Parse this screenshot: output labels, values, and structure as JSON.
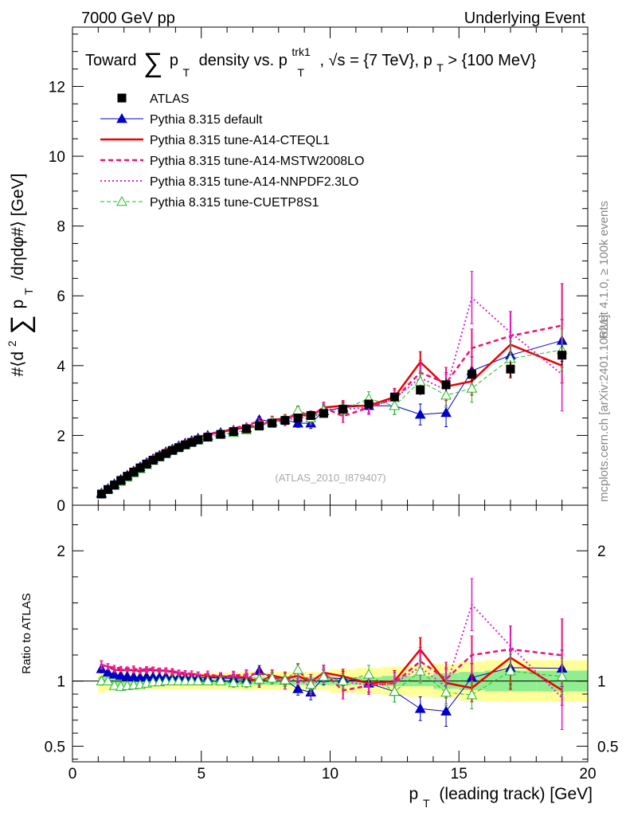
{
  "chart_data": {
    "type": "line",
    "header": {
      "left": "7000 GeV pp",
      "right": "Underlying Event"
    },
    "title": "Toward ∑ pT density vs. pT^trk1, √s = {7 TeV}, pT > {100 MeV}",
    "title_parts": {
      "t1": "Toward",
      "sum": "∑",
      "t2": "p",
      "t3": "T",
      "t4": "density vs. p",
      "t5": "trk1",
      "t6": "T",
      "t7": ", √s = {7 TeV}, p",
      "t8": "T",
      "t9": " > {100 MeV}"
    },
    "ylabel": "#⟨d² ∑ pT /dηdφ#⟩ [GeV]",
    "ylabel_parts": {
      "a": "#⟨d",
      "b": "2",
      "c": "∑",
      "d": "p",
      "e": "T",
      "f": "/dηdφ#⟩ [GeV]"
    },
    "ratio_ylabel": "Ratio to ATLAS",
    "xlabel": "pT (leading track) [GeV]",
    "xlabel_parts": {
      "a": "p",
      "b": "T",
      "c": "(leading track) [GeV]"
    },
    "side_labels": {
      "rivet": "Rivet 4.1.0, ≥ 100k events",
      "mcplots": "mcplots.cern.ch [arXiv:2401.10621]"
    },
    "analysis_tag": "(ATLAS_2010_I879407)",
    "xlim": [
      0,
      20
    ],
    "ylim": [
      0,
      13.7
    ],
    "ratio_ylim": [
      0.38,
      2.35
    ],
    "x_ticks": [
      0,
      5,
      10,
      15,
      20
    ],
    "x_tick_labels": [
      "0",
      "5",
      "10",
      "15",
      "20"
    ],
    "y_ticks": [
      0,
      2,
      4,
      6,
      8,
      10,
      12
    ],
    "y_tick_labels": [
      "0",
      "2",
      "4",
      "6",
      "8",
      "10",
      "12"
    ],
    "ratio_ticks": [
      0.5,
      1,
      2
    ],
    "ratio_tick_labels": [
      "0.5",
      "1",
      "2"
    ],
    "bin_edges": [
      1,
      1.25,
      1.5,
      1.75,
      2,
      2.25,
      2.5,
      2.75,
      3,
      3.25,
      3.5,
      3.75,
      4,
      4.25,
      4.5,
      4.75,
      5,
      5.5,
      6,
      6.5,
      7,
      7.5,
      8,
      8.5,
      9,
      9.5,
      10,
      11,
      12,
      13,
      14,
      15,
      16,
      18,
      20
    ],
    "x": [
      1.125,
      1.375,
      1.625,
      1.875,
      2.125,
      2.375,
      2.625,
      2.875,
      3.125,
      3.375,
      3.625,
      3.875,
      4.125,
      4.375,
      4.625,
      4.875,
      5.25,
      5.75,
      6.25,
      6.75,
      7.25,
      7.75,
      8.25,
      8.75,
      9.25,
      9.75,
      10.5,
      11.5,
      12.5,
      13.5,
      14.5,
      15.5,
      17,
      19
    ],
    "atlas": {
      "name": "ATLAS",
      "values": [
        0.32,
        0.45,
        0.58,
        0.71,
        0.83,
        0.95,
        1.07,
        1.18,
        1.29,
        1.39,
        1.48,
        1.57,
        1.65,
        1.73,
        1.8,
        1.87,
        1.95,
        2.03,
        2.11,
        2.19,
        2.27,
        2.35,
        2.43,
        2.5,
        2.57,
        2.63,
        2.75,
        2.9,
        3.1,
        3.3,
        3.45,
        3.75,
        3.9,
        4.3
      ],
      "errors": [
        0.01,
        0.01,
        0.01,
        0.01,
        0.01,
        0.01,
        0.01,
        0.01,
        0.02,
        0.02,
        0.02,
        0.02,
        0.02,
        0.02,
        0.02,
        0.03,
        0.03,
        0.03,
        0.04,
        0.04,
        0.05,
        0.05,
        0.06,
        0.06,
        0.07,
        0.08,
        0.08,
        0.1,
        0.12,
        0.15,
        0.18,
        0.22,
        0.25,
        0.3
      ]
    },
    "ratio_bands": {
      "stat_rel": [
        0.03,
        0.03,
        0.03,
        0.03,
        0.03,
        0.03,
        0.03,
        0.03,
        0.03,
        0.03,
        0.03,
        0.03,
        0.03,
        0.03,
        0.03,
        0.03,
        0.03,
        0.03,
        0.03,
        0.03,
        0.03,
        0.03,
        0.03,
        0.03,
        0.03,
        0.03,
        0.03,
        0.03,
        0.04,
        0.04,
        0.06,
        0.07,
        0.08,
        0.08
      ],
      "total_rel": [
        0.09,
        0.075,
        0.07,
        0.065,
        0.065,
        0.065,
        0.065,
        0.065,
        0.065,
        0.065,
        0.065,
        0.065,
        0.065,
        0.065,
        0.065,
        0.065,
        0.065,
        0.065,
        0.065,
        0.07,
        0.07,
        0.07,
        0.07,
        0.07,
        0.07,
        0.07,
        0.09,
        0.1,
        0.11,
        0.12,
        0.13,
        0.15,
        0.16,
        0.16
      ],
      "stat_color": "#90ee90",
      "total_color": "#ffff99"
    },
    "series": [
      {
        "name": "Pythia 8.315 default",
        "color": "#0000cc",
        "dash": "",
        "width": 1,
        "marker": "triangle-filled",
        "values": [
          0.35,
          0.48,
          0.61,
          0.74,
          0.86,
          0.98,
          1.1,
          1.22,
          1.33,
          1.43,
          1.53,
          1.61,
          1.7,
          1.78,
          1.85,
          1.92,
          2.0,
          2.08,
          2.15,
          2.22,
          2.45,
          2.4,
          2.45,
          2.35,
          2.35,
          2.7,
          2.8,
          2.85,
          2.85,
          2.6,
          2.65,
          3.85,
          4.3,
          4.72
        ],
        "errors": [
          0.01,
          0.01,
          0.01,
          0.01,
          0.01,
          0.02,
          0.02,
          0.02,
          0.02,
          0.02,
          0.03,
          0.03,
          0.03,
          0.03,
          0.04,
          0.04,
          0.05,
          0.06,
          0.07,
          0.08,
          0.09,
          0.1,
          0.12,
          0.12,
          0.15,
          0.15,
          0.15,
          0.2,
          0.25,
          0.3,
          0.4,
          0.4,
          0.5,
          0.6
        ]
      },
      {
        "name": "Pythia 8.315 tune-A14-CTEQL1",
        "color": "#ee0000",
        "dash": "",
        "width": 2.5,
        "marker": "none",
        "values": [
          0.36,
          0.5,
          0.63,
          0.77,
          0.9,
          1.03,
          1.15,
          1.28,
          1.4,
          1.5,
          1.6,
          1.68,
          1.75,
          1.82,
          1.9,
          1.96,
          2.02,
          2.1,
          2.18,
          2.25,
          2.25,
          2.45,
          2.48,
          2.6,
          2.55,
          2.8,
          2.85,
          2.85,
          3.1,
          4.1,
          3.4,
          3.55,
          4.6,
          4.0
        ],
        "errors": [
          0.01,
          0.01,
          0.01,
          0.01,
          0.01,
          0.02,
          0.02,
          0.02,
          0.02,
          0.02,
          0.03,
          0.03,
          0.03,
          0.03,
          0.04,
          0.04,
          0.05,
          0.06,
          0.07,
          0.08,
          0.09,
          0.1,
          0.12,
          0.12,
          0.15,
          0.15,
          0.15,
          0.2,
          0.25,
          0.3,
          0.4,
          0.4,
          0.95,
          0.5
        ]
      },
      {
        "name": "Pythia 8.315 tune-A14-MSTW2008LO",
        "color": "#ee1177",
        "dash": "6,4",
        "width": 2.5,
        "marker": "none",
        "values": [
          0.36,
          0.5,
          0.64,
          0.78,
          0.91,
          1.04,
          1.16,
          1.29,
          1.41,
          1.51,
          1.6,
          1.69,
          1.76,
          1.84,
          1.9,
          1.96,
          2.05,
          2.1,
          2.2,
          2.3,
          2.4,
          2.45,
          2.4,
          2.7,
          2.55,
          2.8,
          2.55,
          2.8,
          3.05,
          3.8,
          3.5,
          4.5,
          4.85,
          5.15
        ],
        "errors": [
          0.01,
          0.01,
          0.01,
          0.01,
          0.01,
          0.02,
          0.02,
          0.02,
          0.02,
          0.02,
          0.03,
          0.03,
          0.03,
          0.03,
          0.04,
          0.04,
          0.05,
          0.06,
          0.07,
          0.08,
          0.09,
          0.1,
          0.12,
          0.12,
          0.15,
          0.15,
          0.18,
          0.2,
          0.25,
          0.35,
          0.45,
          0.55,
          0.7,
          1.2
        ]
      },
      {
        "name": "Pythia 8.315 tune-A14-NNPDF2.3LO",
        "color": "#dd22cc",
        "dash": "2,3",
        "width": 2,
        "marker": "none",
        "values": [
          0.36,
          0.5,
          0.63,
          0.77,
          0.9,
          1.03,
          1.15,
          1.27,
          1.4,
          1.5,
          1.59,
          1.67,
          1.75,
          1.82,
          1.9,
          1.96,
          2.02,
          2.1,
          2.18,
          2.28,
          2.28,
          2.4,
          2.4,
          2.55,
          2.45,
          2.75,
          2.75,
          2.8,
          3.05,
          3.65,
          3.3,
          5.95,
          4.95,
          3.75
        ],
        "errors": [
          0.01,
          0.01,
          0.01,
          0.01,
          0.01,
          0.02,
          0.02,
          0.02,
          0.02,
          0.02,
          0.03,
          0.03,
          0.03,
          0.03,
          0.04,
          0.04,
          0.05,
          0.06,
          0.07,
          0.08,
          0.09,
          0.1,
          0.12,
          0.12,
          0.15,
          0.15,
          0.15,
          0.2,
          0.25,
          0.35,
          0.45,
          0.75,
          0.6,
          1.05
        ]
      },
      {
        "name": "Pythia 8.315 tune-CUETP8S1",
        "color": "#22bb22",
        "dash": "5,3",
        "width": 1,
        "marker": "triangle-open",
        "values": [
          0.32,
          0.45,
          0.56,
          0.68,
          0.8,
          0.92,
          1.04,
          1.16,
          1.28,
          1.38,
          1.48,
          1.57,
          1.65,
          1.73,
          1.8,
          1.87,
          1.95,
          2.03,
          2.08,
          2.16,
          2.3,
          2.4,
          2.45,
          2.72,
          2.5,
          2.72,
          2.75,
          3.05,
          2.85,
          3.55,
          3.15,
          3.35,
          4.2,
          4.45
        ],
        "errors": [
          0.01,
          0.01,
          0.01,
          0.01,
          0.01,
          0.02,
          0.02,
          0.02,
          0.02,
          0.02,
          0.03,
          0.03,
          0.03,
          0.03,
          0.04,
          0.04,
          0.05,
          0.06,
          0.07,
          0.08,
          0.09,
          0.1,
          0.12,
          0.12,
          0.15,
          0.15,
          0.15,
          0.2,
          0.25,
          0.3,
          0.35,
          0.4,
          0.5,
          0.6
        ]
      }
    ]
  }
}
